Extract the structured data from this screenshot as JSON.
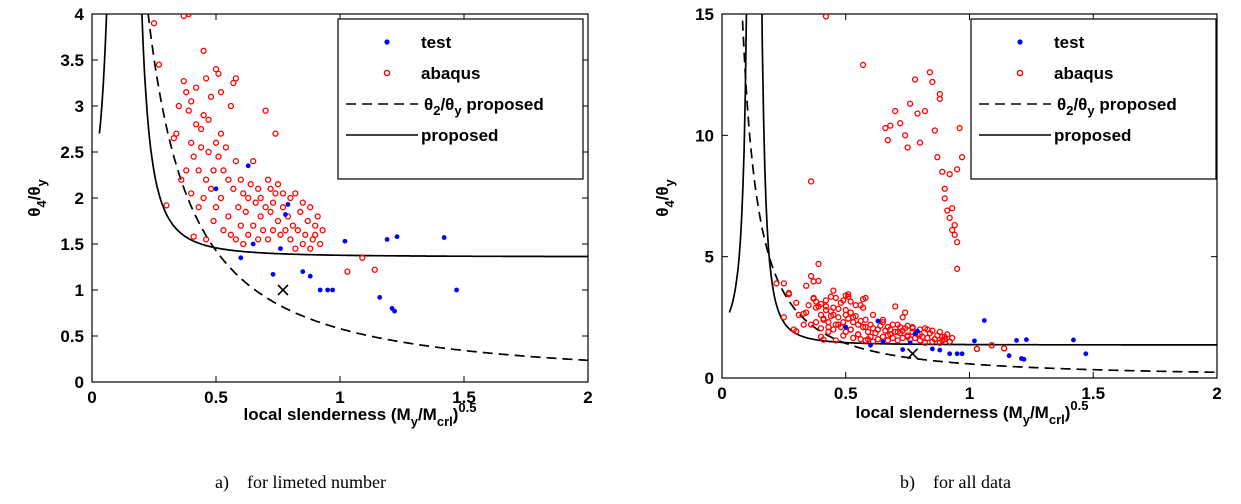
{
  "chart_data": [
    {
      "type": "scatter",
      "caption_letter": "a)",
      "caption_text": "for limeted number",
      "xlabel_base": "local slenderness (M",
      "xlabel_sub1": "y",
      "xlabel_mid": "/M",
      "xlabel_sub2": "crl",
      "xlabel_end": ")",
      "xlabel_sup": "0.5",
      "ylabel_a": "θ",
      "ylabel_a_sub": "4",
      "ylabel_b": "/θ",
      "ylabel_b_sub": "y",
      "xlim": [
        0,
        2
      ],
      "ylim": [
        0,
        4
      ],
      "xticks": [
        "0",
        "0.5",
        "1",
        "1.5",
        "2"
      ],
      "yticks": [
        "0",
        "0.5",
        "1",
        "1.5",
        "2",
        "2.5",
        "3",
        "3.5",
        "4"
      ],
      "legend": {
        "test": "test",
        "abaqus": "abaqus",
        "ratio_a": "θ",
        "ratio_a_sub": "2",
        "ratio_b": "/θ",
        "ratio_b_sub": "y",
        "ratio_c": " proposed",
        "proposed": "proposed"
      },
      "colors": {
        "test": "#0000ff",
        "abaqus": "#ff0000",
        "curve": "#000000"
      },
      "marker_x": [
        0.77,
        1.0
      ]
    },
    {
      "type": "scatter",
      "caption_letter": "b)",
      "caption_text": "for all data",
      "xlabel_base": "local slenderness (M",
      "xlabel_sub1": "y",
      "xlabel_mid": "/M",
      "xlabel_sub2": "crl",
      "xlabel_end": ")",
      "xlabel_sup": "0.5",
      "ylabel_a": "θ",
      "ylabel_a_sub": "4",
      "ylabel_b": "/θ",
      "ylabel_b_sub": "y",
      "xlim": [
        0,
        2
      ],
      "ylim": [
        0,
        15
      ],
      "xticks": [
        "0",
        "0.5",
        "1",
        "1.5",
        "2"
      ],
      "yticks": [
        "0",
        "5",
        "10",
        "15"
      ],
      "legend": {
        "test": "test",
        "abaqus": "abaqus",
        "ratio_a": "θ",
        "ratio_a_sub": "2",
        "ratio_b": "/θ",
        "ratio_b_sub": "y",
        "ratio_c": " proposed",
        "proposed": "proposed"
      },
      "colors": {
        "test": "#0000ff",
        "abaqus": "#ff0000",
        "curve": "#000000"
      },
      "marker_x": [
        0.77,
        1.0
      ]
    }
  ],
  "series_data": {
    "test": [
      [
        0.5,
        2.1
      ],
      [
        0.6,
        1.35
      ],
      [
        0.63,
        2.35
      ],
      [
        0.65,
        1.5
      ],
      [
        0.73,
        1.17
      ],
      [
        0.76,
        1.45
      ],
      [
        0.78,
        1.82
      ],
      [
        0.79,
        1.93
      ],
      [
        0.85,
        1.2
      ],
      [
        0.88,
        1.15
      ],
      [
        0.92,
        1.0
      ],
      [
        0.95,
        1.0
      ],
      [
        0.97,
        1.0
      ],
      [
        1.02,
        1.53
      ],
      [
        1.06,
        2.37
      ],
      [
        1.16,
        0.92
      ],
      [
        1.19,
        1.55
      ],
      [
        1.21,
        0.8
      ],
      [
        1.22,
        0.77
      ],
      [
        1.23,
        1.58
      ],
      [
        1.42,
        1.57
      ],
      [
        1.47,
        1.0
      ]
    ],
    "abaqus_a": [
      [
        0.25,
        3.9
      ],
      [
        0.27,
        3.45
      ],
      [
        0.3,
        1.92
      ],
      [
        0.33,
        2.65
      ],
      [
        0.34,
        2.7
      ],
      [
        0.35,
        3.0
      ],
      [
        0.36,
        2.2
      ],
      [
        0.37,
        3.98
      ],
      [
        0.37,
        3.27
      ],
      [
        0.38,
        2.3
      ],
      [
        0.38,
        3.15
      ],
      [
        0.39,
        2.95
      ],
      [
        0.39,
        4.0
      ],
      [
        0.4,
        2.6
      ],
      [
        0.4,
        2.05
      ],
      [
        0.4,
        3.05
      ],
      [
        0.41,
        1.58
      ],
      [
        0.41,
        2.45
      ],
      [
        0.42,
        3.2
      ],
      [
        0.42,
        2.8
      ],
      [
        0.43,
        1.9
      ],
      [
        0.43,
        2.3
      ],
      [
        0.44,
        2.55
      ],
      [
        0.44,
        2.75
      ],
      [
        0.45,
        3.6
      ],
      [
        0.45,
        2.0
      ],
      [
        0.45,
        2.9
      ],
      [
        0.46,
        3.3
      ],
      [
        0.46,
        1.55
      ],
      [
        0.46,
        2.2
      ],
      [
        0.47,
        2.5
      ],
      [
        0.47,
        2.85
      ],
      [
        0.48,
        2.1
      ],
      [
        0.48,
        3.1
      ],
      [
        0.49,
        1.75
      ],
      [
        0.49,
        2.3
      ],
      [
        0.5,
        3.4
      ],
      [
        0.5,
        2.6
      ],
      [
        0.5,
        1.9
      ],
      [
        0.51,
        3.35
      ],
      [
        0.51,
        2.45
      ],
      [
        0.52,
        2.0
      ],
      [
        0.52,
        2.7
      ],
      [
        0.52,
        3.15
      ],
      [
        0.53,
        1.65
      ],
      [
        0.53,
        2.3
      ],
      [
        0.54,
        2.55
      ],
      [
        0.55,
        1.8
      ],
      [
        0.55,
        2.2
      ],
      [
        0.56,
        1.6
      ],
      [
        0.56,
        3.0
      ],
      [
        0.57,
        2.1
      ],
      [
        0.57,
        3.25
      ],
      [
        0.58,
        1.55
      ],
      [
        0.58,
        2.4
      ],
      [
        0.58,
        3.3
      ],
      [
        0.59,
        1.9
      ],
      [
        0.6,
        2.2
      ],
      [
        0.6,
        1.7
      ],
      [
        0.61,
        1.5
      ],
      [
        0.61,
        2.05
      ],
      [
        0.62,
        1.85
      ],
      [
        0.63,
        2.0
      ],
      [
        0.63,
        1.6
      ],
      [
        0.64,
        2.15
      ],
      [
        0.65,
        1.7
      ],
      [
        0.65,
        2.4
      ],
      [
        0.66,
        1.95
      ],
      [
        0.67,
        1.55
      ],
      [
        0.67,
        2.1
      ],
      [
        0.68,
        1.8
      ],
      [
        0.68,
        2.0
      ],
      [
        0.69,
        1.65
      ],
      [
        0.7,
        1.9
      ],
      [
        0.7,
        2.95
      ],
      [
        0.71,
        2.2
      ],
      [
        0.71,
        1.55
      ],
      [
        0.72,
        1.85
      ],
      [
        0.72,
        2.1
      ],
      [
        0.73,
        1.65
      ],
      [
        0.73,
        1.95
      ],
      [
        0.74,
        2.05
      ],
      [
        0.74,
        2.7
      ],
      [
        0.75,
        1.75
      ],
      [
        0.75,
        2.15
      ],
      [
        0.76,
        1.6
      ],
      [
        0.77,
        1.9
      ],
      [
        0.77,
        2.05
      ],
      [
        0.78,
        1.65
      ],
      [
        0.79,
        1.8
      ],
      [
        0.8,
        2.0
      ],
      [
        0.8,
        1.55
      ],
      [
        0.81,
        1.7
      ],
      [
        0.82,
        2.05
      ],
      [
        0.82,
        1.45
      ],
      [
        0.83,
        1.65
      ],
      [
        0.84,
        1.85
      ],
      [
        0.85,
        1.5
      ],
      [
        0.85,
        1.95
      ],
      [
        0.86,
        1.6
      ],
      [
        0.87,
        1.75
      ],
      [
        0.88,
        1.45
      ],
      [
        0.88,
        1.9
      ],
      [
        0.89,
        1.55
      ],
      [
        0.9,
        1.7
      ],
      [
        0.9,
        1.6
      ],
      [
        0.91,
        1.8
      ],
      [
        0.92,
        1.5
      ],
      [
        0.93,
        1.65
      ],
      [
        1.03,
        1.2
      ],
      [
        1.09,
        1.35
      ],
      [
        1.14,
        1.22
      ]
    ],
    "abaqus_b_extra": [
      [
        0.42,
        14.9
      ],
      [
        0.57,
        12.9
      ],
      [
        0.36,
        8.1
      ],
      [
        0.66,
        10.3
      ],
      [
        0.67,
        9.8
      ],
      [
        0.68,
        10.4
      ],
      [
        0.7,
        11.0
      ],
      [
        0.72,
        10.5
      ],
      [
        0.74,
        10.0
      ],
      [
        0.75,
        9.5
      ],
      [
        0.76,
        11.3
      ],
      [
        0.78,
        12.3
      ],
      [
        0.79,
        10.9
      ],
      [
        0.8,
        9.7
      ],
      [
        0.82,
        11.0
      ],
      [
        0.84,
        12.6
      ],
      [
        0.85,
        12.2
      ],
      [
        0.86,
        10.2
      ],
      [
        0.87,
        9.1
      ],
      [
        0.88,
        11.5
      ],
      [
        0.88,
        11.7
      ],
      [
        0.89,
        8.5
      ],
      [
        0.9,
        7.8
      ],
      [
        0.9,
        7.4
      ],
      [
        0.91,
        6.9
      ],
      [
        0.92,
        8.4
      ],
      [
        0.92,
        6.6
      ],
      [
        0.93,
        6.1
      ],
      [
        0.93,
        7.0
      ],
      [
        0.94,
        6.3
      ],
      [
        0.94,
        5.9
      ],
      [
        0.95,
        4.5
      ],
      [
        0.95,
        5.6
      ],
      [
        0.95,
        8.6
      ],
      [
        0.96,
        10.3
      ],
      [
        0.97,
        9.1
      ]
    ],
    "abaqus_b_low": [
      [
        0.22,
        3.9
      ],
      [
        0.25,
        2.5
      ],
      [
        0.27,
        3.5
      ],
      [
        0.29,
        2.0
      ],
      [
        0.3,
        3.1
      ],
      [
        0.31,
        2.6
      ],
      [
        0.33,
        2.2
      ],
      [
        0.34,
        3.8
      ],
      [
        0.36,
        4.2
      ],
      [
        0.37,
        3.3
      ],
      [
        0.38,
        2.9
      ],
      [
        0.39,
        4.7
      ],
      [
        0.4,
        1.7
      ],
      [
        0.41,
        2.4
      ],
      [
        0.42,
        2.95
      ],
      [
        0.43,
        2.1
      ],
      [
        0.44,
        3.35
      ],
      [
        0.45,
        2.6
      ],
      [
        0.47,
        2.2
      ],
      [
        0.49,
        3.2
      ],
      [
        0.5,
        2.8
      ],
      [
        0.51,
        3.45
      ],
      [
        0.52,
        2.0
      ],
      [
        0.53,
        2.5
      ],
      [
        0.54,
        3.0
      ],
      [
        0.55,
        1.8
      ],
      [
        0.56,
        2.35
      ],
      [
        0.57,
        2.9
      ],
      [
        0.58,
        2.1
      ],
      [
        0.59,
        1.6
      ],
      [
        0.61,
        2.6
      ],
      [
        0.63,
        2.0
      ],
      [
        0.65,
        2.3
      ],
      [
        0.67,
        1.75
      ],
      [
        0.69,
        2.2
      ],
      [
        0.71,
        1.9
      ],
      [
        0.73,
        2.5
      ],
      [
        0.75,
        1.7
      ],
      [
        0.77,
        2.1
      ],
      [
        0.8,
        1.8
      ],
      [
        0.83,
        2.0
      ],
      [
        0.86,
        1.6
      ],
      [
        0.89,
        1.7
      ],
      [
        0.92,
        1.5
      ],
      [
        1.03,
        1.2
      ],
      [
        1.09,
        1.35
      ],
      [
        1.14,
        1.22
      ]
    ]
  }
}
